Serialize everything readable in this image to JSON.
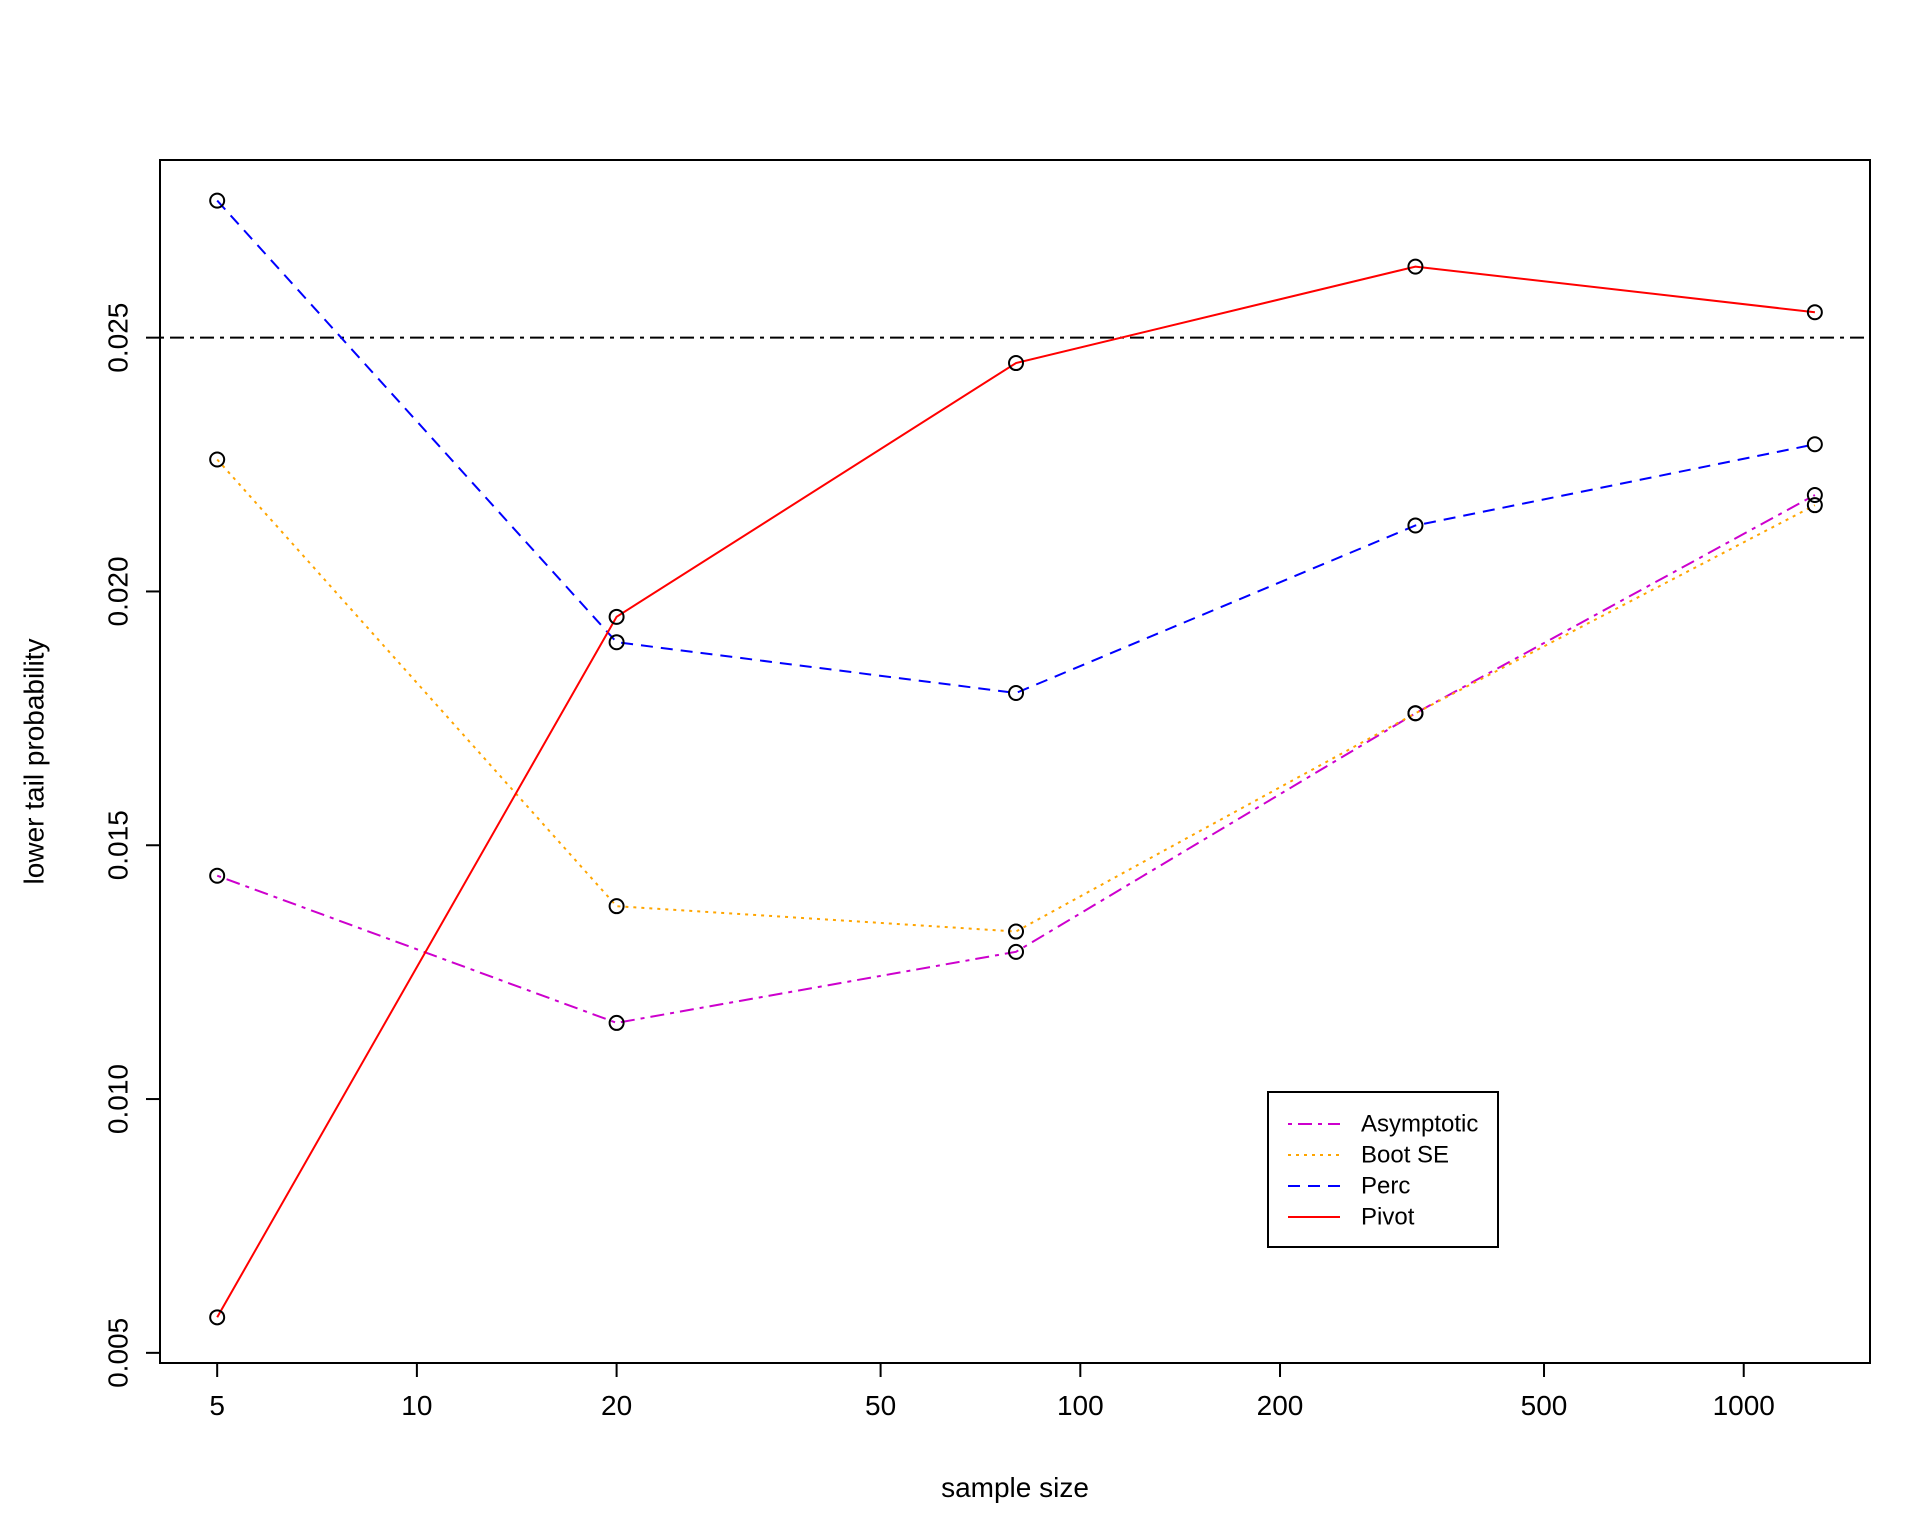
{
  "chart_data": {
    "type": "line",
    "title": "",
    "xlabel": "sample size",
    "ylabel": "lower tail probability",
    "x_scale": "log",
    "xlim": [
      4.1,
      1550
    ],
    "ylim": [
      0.0048,
      0.0285
    ],
    "x_ticks": [
      5,
      10,
      20,
      50,
      100,
      200,
      500,
      1000
    ],
    "x_tick_labels": [
      "5",
      "10",
      "20",
      "50",
      "100",
      "200",
      "500",
      "1000"
    ],
    "y_ticks": [
      0.005,
      0.01,
      0.015,
      0.02,
      0.025
    ],
    "y_tick_labels": [
      "0.005",
      "0.010",
      "0.015",
      "0.020",
      "0.025"
    ],
    "x": [
      5,
      20,
      80,
      320,
      1280
    ],
    "reference_line": {
      "y": 0.025,
      "color": "#000000",
      "style": "dashdot"
    },
    "series": [
      {
        "name": "Asymptotic",
        "color": "#CD00CD",
        "style": "dashdot",
        "values": [
          0.0144,
          0.0115,
          0.0129,
          0.0176,
          0.0219
        ]
      },
      {
        "name": "Boot SE",
        "color": "#FFA500",
        "style": "dotted",
        "values": [
          0.0226,
          0.0138,
          0.0133,
          0.0176,
          0.0217
        ]
      },
      {
        "name": "Perc",
        "color": "#0000FF",
        "style": "dashed",
        "values": [
          0.0277,
          0.019,
          0.018,
          0.0213,
          0.0229
        ]
      },
      {
        "name": "Pivot",
        "color": "#FF0000",
        "style": "solid",
        "values": [
          0.0057,
          0.0195,
          0.0245,
          0.0264,
          0.0255
        ]
      }
    ],
    "legend_position": "bottom-right",
    "grid": false,
    "markers": "open-circle"
  }
}
